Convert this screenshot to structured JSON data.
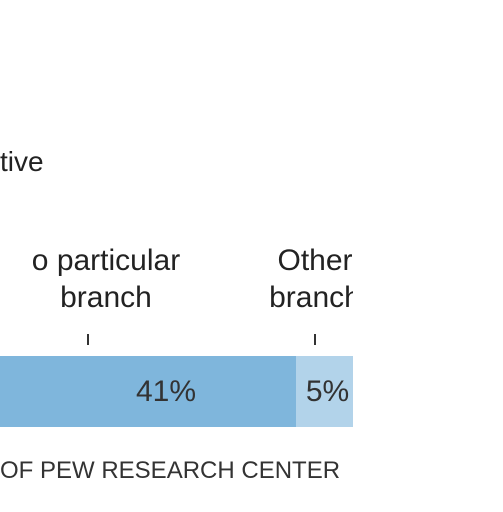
{
  "title_fragment": "tive",
  "source_fragment": "OF PEW RESEARCH CENTER",
  "colors": {
    "bar_primary": "#7fb6dc",
    "bar_secondary": "#b2d3ea",
    "text": "#222222"
  },
  "chart_data": {
    "type": "bar",
    "orientation": "horizontal-stacked",
    "categories": [
      "o particular branch",
      "Other branch"
    ],
    "category_label_lines": [
      [
        "o particular",
        "branch"
      ],
      [
        "Other",
        "branch"
      ]
    ],
    "values": [
      41,
      5
    ],
    "value_labels": [
      "41%",
      "5%"
    ],
    "unit": "%",
    "grid": false,
    "legend": "none"
  }
}
